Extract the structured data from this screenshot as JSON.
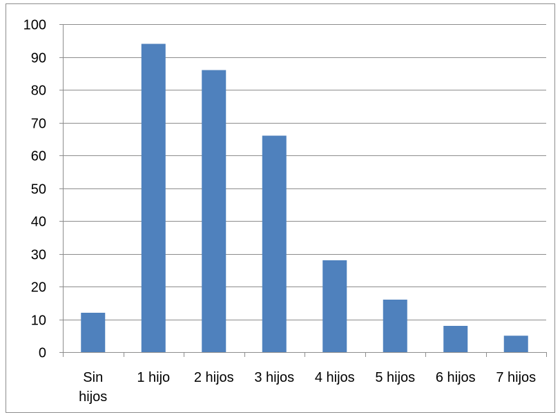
{
  "chart_data": {
    "type": "bar",
    "categories": [
      "Sin hijos",
      "1 hijo",
      "2 hijos",
      "3 hijos",
      "4 hijos",
      "5 hijos",
      "6 hijos",
      "7 hijos"
    ],
    "values": [
      12,
      94,
      86,
      66,
      28,
      16,
      8,
      5
    ],
    "y_ticks": [
      "0",
      "10",
      "20",
      "30",
      "40",
      "50",
      "60",
      "70",
      "80",
      "90",
      "100"
    ],
    "ylim": [
      0,
      100
    ],
    "grid": "horizontal",
    "legend": "none",
    "colors": {
      "bar": "#4f81bd",
      "grid": "#8c8c8c",
      "axis": "#8c8c8c",
      "frame": "#8c8c8c"
    }
  }
}
